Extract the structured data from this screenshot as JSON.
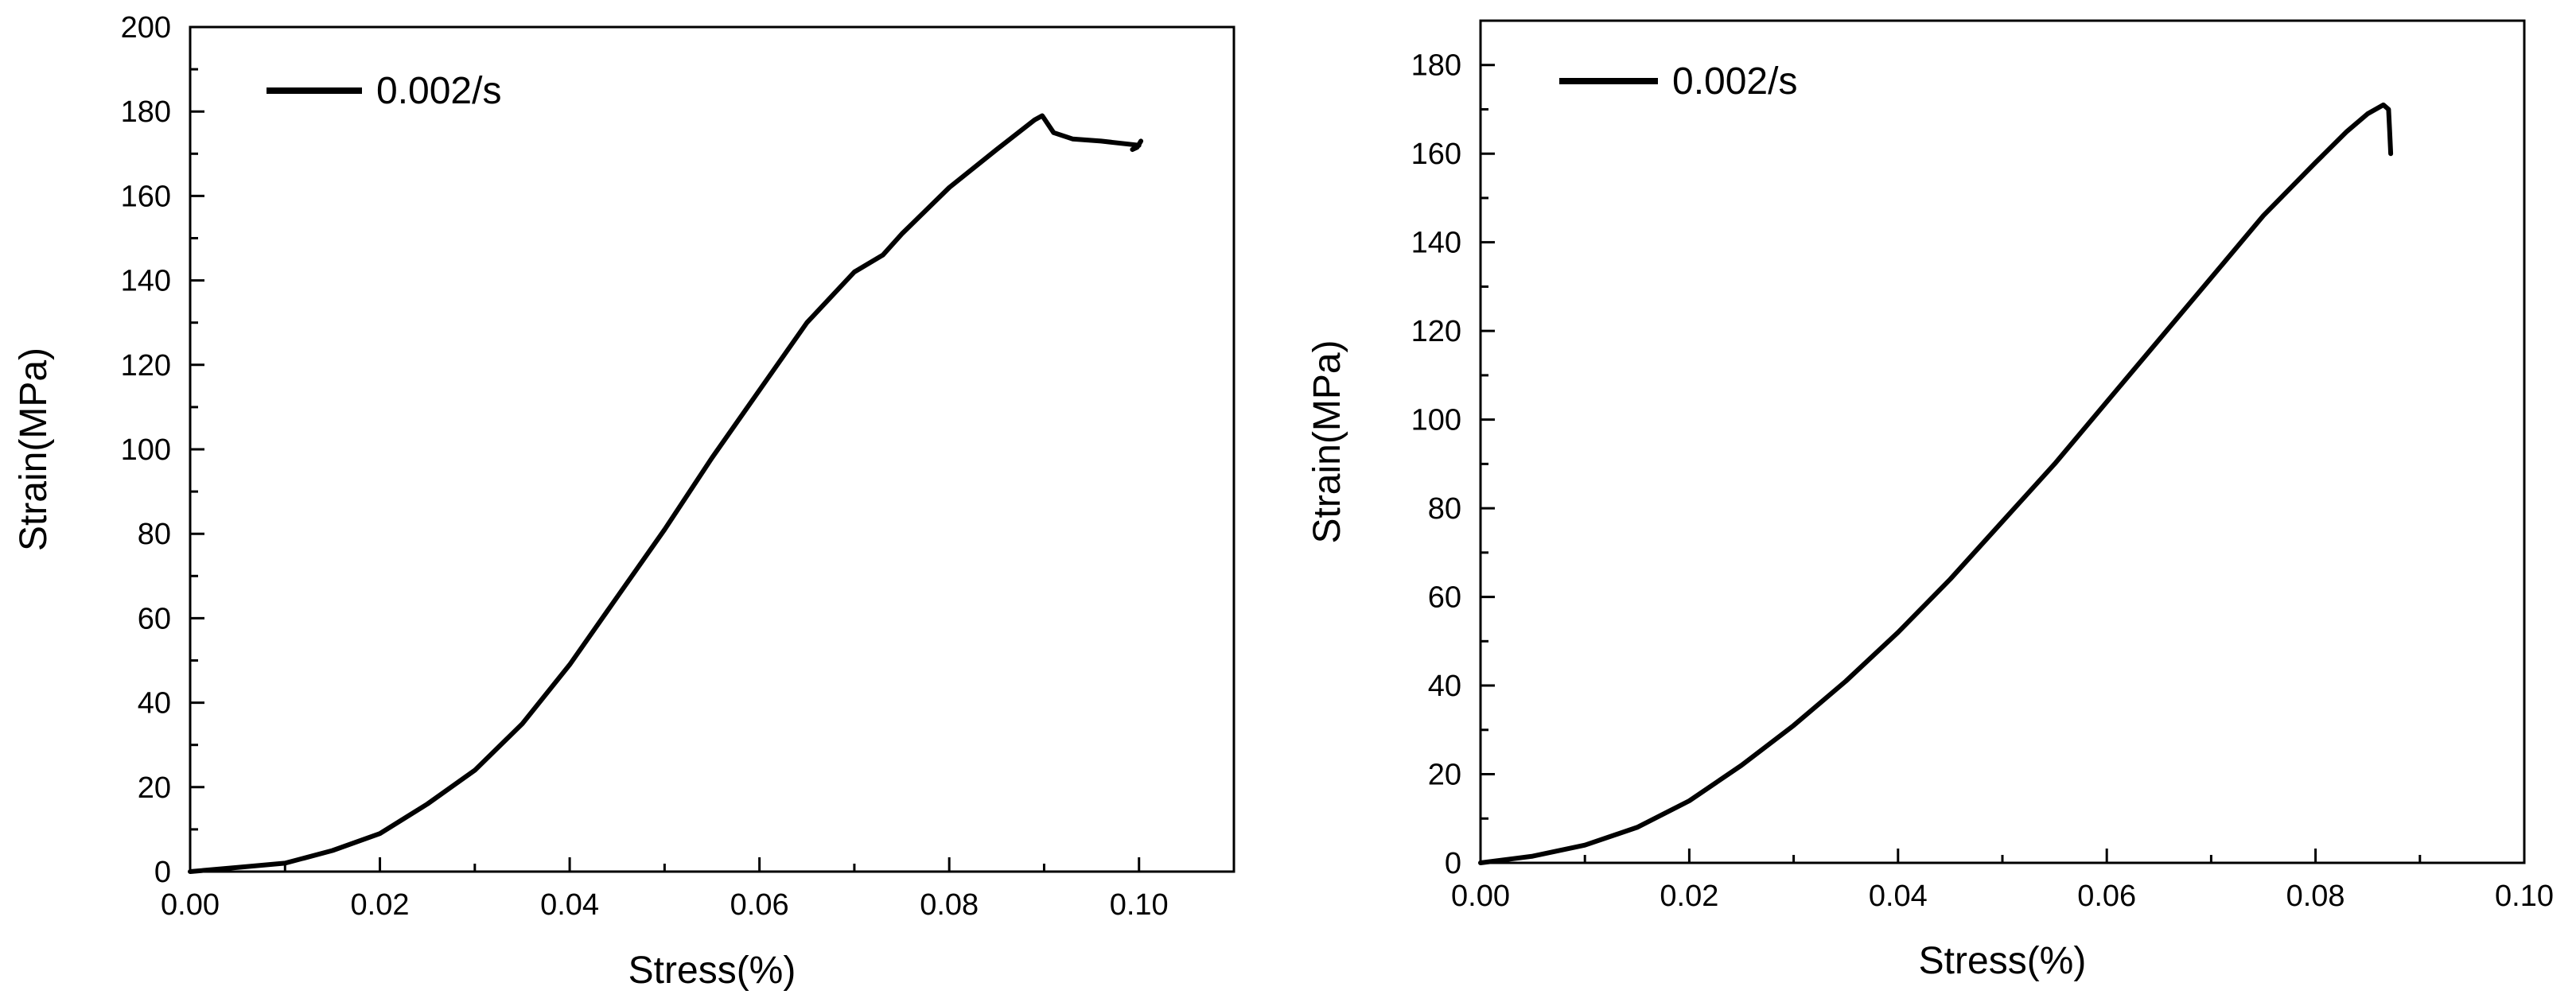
{
  "chart_data": [
    {
      "type": "line",
      "title": "",
      "xlabel": "Stress(%)",
      "ylabel": "Strain(MPa)",
      "xlim": [
        0,
        0.11
      ],
      "ylim": [
        0,
        200
      ],
      "xticks": [
        0,
        0.02,
        0.04,
        0.06,
        0.08,
        0.1
      ],
      "yticks": [
        0,
        20,
        40,
        60,
        80,
        100,
        120,
        140,
        160,
        180,
        200
      ],
      "xtick_labels": [
        "0.00",
        "0.02",
        "0.04",
        "0.06",
        "0.08",
        "0.10"
      ],
      "ytick_labels": [
        "0",
        "20",
        "40",
        "60",
        "80",
        "100",
        "120",
        "140",
        "160",
        "180",
        "200"
      ],
      "legend": "top-left",
      "grid": false,
      "series": [
        {
          "name": "0.002/s",
          "color": "#000000",
          "x": [
            0,
            0.005,
            0.01,
            0.015,
            0.02,
            0.025,
            0.03,
            0.035,
            0.04,
            0.045,
            0.05,
            0.055,
            0.06,
            0.065,
            0.07,
            0.073,
            0.075,
            0.08,
            0.085,
            0.089,
            0.0898,
            0.091,
            0.093,
            0.096,
            0.1,
            0.0993,
            0.0998,
            0.1002
          ],
          "y": [
            0,
            1,
            2,
            5,
            9,
            16,
            24,
            35,
            49,
            65,
            81,
            98,
            114,
            130,
            142,
            146,
            151,
            162,
            171,
            178,
            179,
            175,
            173.5,
            173,
            172,
            171,
            171.5,
            173
          ]
        }
      ]
    },
    {
      "type": "line",
      "title": "",
      "xlabel": "Stress(%)",
      "ylabel": "Strain(MPa)",
      "xlim": [
        0,
        0.1
      ],
      "ylim": [
        0,
        190
      ],
      "xticks": [
        0,
        0.02,
        0.04,
        0.06,
        0.08,
        0.1
      ],
      "yticks": [
        0,
        20,
        40,
        60,
        80,
        100,
        120,
        140,
        160,
        180
      ],
      "xtick_labels": [
        "0.00",
        "0.02",
        "0.04",
        "0.06",
        "0.08",
        "0.10"
      ],
      "ytick_labels": [
        "0",
        "20",
        "40",
        "60",
        "80",
        "100",
        "120",
        "140",
        "160",
        "180"
      ],
      "legend": "top-left",
      "grid": false,
      "series": [
        {
          "name": "0.002/s",
          "color": "#000000",
          "x": [
            0,
            0.005,
            0.01,
            0.015,
            0.02,
            0.025,
            0.03,
            0.035,
            0.04,
            0.045,
            0.05,
            0.055,
            0.06,
            0.065,
            0.07,
            0.075,
            0.08,
            0.083,
            0.085,
            0.0865,
            0.087,
            0.0871,
            0.0872
          ],
          "y": [
            0,
            1.5,
            4,
            8,
            14,
            22,
            31,
            41,
            52,
            64,
            77,
            90,
            104,
            118,
            132,
            146,
            158,
            165,
            169,
            171,
            170,
            165,
            160
          ]
        }
      ]
    }
  ]
}
